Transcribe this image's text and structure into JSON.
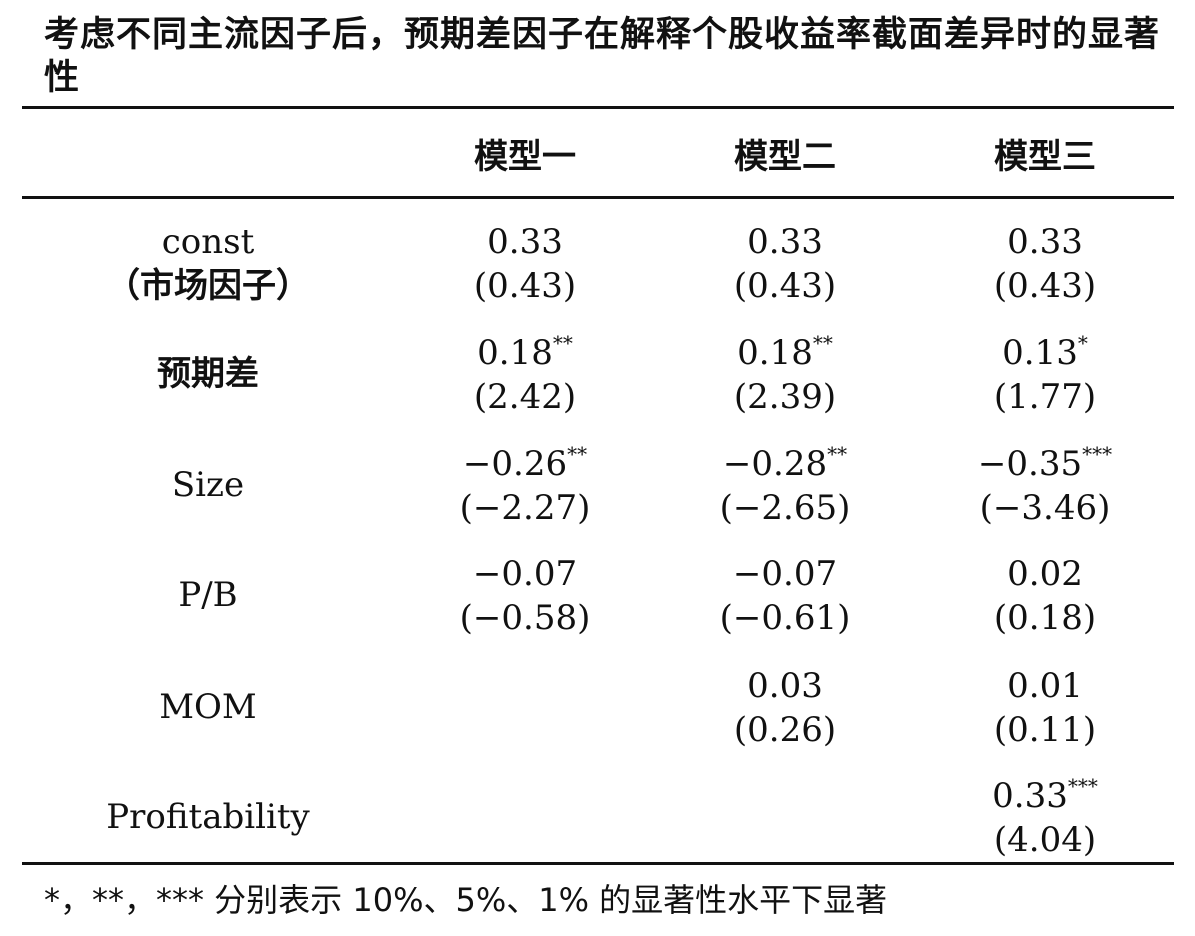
{
  "title": "考虑不同主流因子后，预期差因子在解释个股收益率截面差异时的显著性",
  "columns": [
    "",
    "模型一",
    "模型二",
    "模型三"
  ],
  "rows": [
    {
      "label1": "const",
      "label2": "（市场因子）",
      "cells": [
        {
          "v": "0.33",
          "stars": "",
          "t": "(0.43)"
        },
        {
          "v": "0.33",
          "stars": "",
          "t": "(0.43)"
        },
        {
          "v": "0.33",
          "stars": "",
          "t": "(0.43)"
        }
      ]
    },
    {
      "label1": "预期差",
      "label2": "",
      "cells": [
        {
          "v": "0.18",
          "stars": "**",
          "t": "(2.42)"
        },
        {
          "v": "0.18",
          "stars": "**",
          "t": "(2.39)"
        },
        {
          "v": "0.13",
          "stars": "*",
          "t": "(1.77)"
        }
      ]
    },
    {
      "label1": "Size",
      "label2": "",
      "cells": [
        {
          "v": "−0.26",
          "stars": "**",
          "t": "(−2.27)"
        },
        {
          "v": "−0.28",
          "stars": "**",
          "t": "(−2.65)"
        },
        {
          "v": "−0.35",
          "stars": "***",
          "t": "(−3.46)"
        }
      ]
    },
    {
      "label1": "P/B",
      "label2": "",
      "cells": [
        {
          "v": "−0.07",
          "stars": "",
          "t": "(−0.58)"
        },
        {
          "v": "−0.07",
          "stars": "",
          "t": "(−0.61)"
        },
        {
          "v": "0.02",
          "stars": "",
          "t": "(0.18)"
        }
      ]
    },
    {
      "label1": "MOM",
      "label2": "",
      "cells": [
        {
          "v": "",
          "stars": "",
          "t": ""
        },
        {
          "v": "0.03",
          "stars": "",
          "t": "(0.26)"
        },
        {
          "v": "0.01",
          "stars": "",
          "t": "(0.11)"
        }
      ]
    },
    {
      "label1": "Profitability",
      "label2": "",
      "cells": [
        {
          "v": "",
          "stars": "",
          "t": ""
        },
        {
          "v": "",
          "stars": "",
          "t": ""
        },
        {
          "v": "0.33",
          "stars": "***",
          "t": "(4.04)"
        }
      ]
    }
  ],
  "note": "*，**，*** 分别表示 10%、5%、1% 的显著性水平下显著"
}
